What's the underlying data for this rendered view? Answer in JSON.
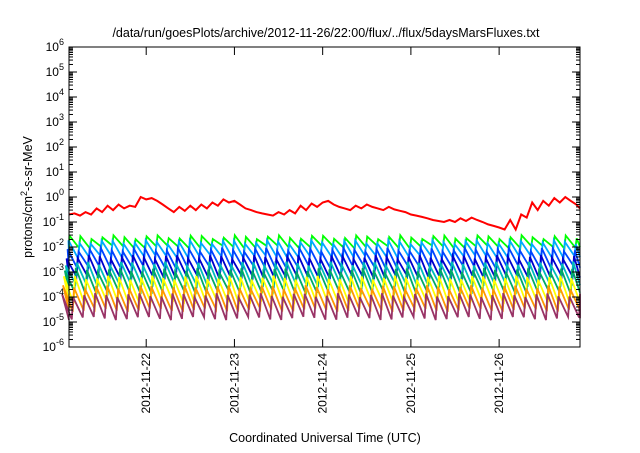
{
  "chart_data": {
    "type": "line",
    "title": "/data/run/goesPlots/archive/2012-11-26/22:00/flux/../flux/5daysMarsFluxes.txt",
    "xlabel": "Coordinated Universal Time (UTC)",
    "ylabel": {
      "prefix": "protons/cm",
      "sup": "2",
      "suffix": "-s-sr-MeV"
    },
    "yscale": "log",
    "ylim": [
      1e-06,
      1000000.0
    ],
    "xlim": [
      "2012-11-21T03:00",
      "2012-11-26T22:00"
    ],
    "grid": false,
    "legend": "none",
    "y_ticks": [
      {
        "value": 1000000.0,
        "base": "10",
        "exp": "6"
      },
      {
        "value": 100000.0,
        "base": "10",
        "exp": "5"
      },
      {
        "value": 10000.0,
        "base": "10",
        "exp": "4"
      },
      {
        "value": 1000.0,
        "base": "10",
        "exp": "3"
      },
      {
        "value": 100.0,
        "base": "10",
        "exp": "2"
      },
      {
        "value": 10.0,
        "base": "10",
        "exp": "1"
      },
      {
        "value": 1.0,
        "base": "10",
        "exp": "0"
      },
      {
        "value": 0.1,
        "base": "10",
        "exp": "-1"
      },
      {
        "value": 0.01,
        "base": "10",
        "exp": "-2"
      },
      {
        "value": 0.001,
        "base": "10",
        "exp": "-3"
      },
      {
        "value": 0.0001,
        "base": "10",
        "exp": "-4"
      },
      {
        "value": 1e-05,
        "base": "10",
        "exp": "-5"
      },
      {
        "value": 1e-06,
        "base": "10",
        "exp": "-6"
      }
    ],
    "x_ticks": [
      {
        "value": "2012-11-22T00:00",
        "label": "2012-11-22"
      },
      {
        "value": "2012-11-23T00:00",
        "label": "2012-11-23"
      },
      {
        "value": "2012-11-24T00:00",
        "label": "2012-11-24"
      },
      {
        "value": "2012-11-25T00:00",
        "label": "2012-11-25"
      },
      {
        "value": "2012-11-26T00:00",
        "label": "2012-11-26"
      }
    ],
    "series": [
      {
        "color": "#ff0000",
        "sawtooth": false,
        "x": [
          "2012-11-21T03:00",
          "2012-11-21T04:30",
          "2012-11-21T06:00",
          "2012-11-21T07:30",
          "2012-11-21T09:00",
          "2012-11-21T10:30",
          "2012-11-21T12:00",
          "2012-11-21T13:30",
          "2012-11-21T15:00",
          "2012-11-21T16:30",
          "2012-11-21T18:00",
          "2012-11-21T19:30",
          "2012-11-21T21:00",
          "2012-11-21T22:30",
          "2012-11-22T00:00",
          "2012-11-22T01:30",
          "2012-11-22T03:00",
          "2012-11-22T04:30",
          "2012-11-22T06:00",
          "2012-11-22T07:30",
          "2012-11-22T09:00",
          "2012-11-22T10:30",
          "2012-11-22T12:00",
          "2012-11-22T13:30",
          "2012-11-22T15:00",
          "2012-11-22T16:30",
          "2012-11-22T18:00",
          "2012-11-22T19:30",
          "2012-11-22T21:00",
          "2012-11-22T22:30",
          "2012-11-23T00:00",
          "2012-11-23T01:30",
          "2012-11-23T03:00",
          "2012-11-23T04:30",
          "2012-11-23T06:00",
          "2012-11-23T07:30",
          "2012-11-23T09:00",
          "2012-11-23T10:30",
          "2012-11-23T12:00",
          "2012-11-23T13:30",
          "2012-11-23T15:00",
          "2012-11-23T16:30",
          "2012-11-23T18:00",
          "2012-11-23T19:30",
          "2012-11-23T21:00",
          "2012-11-23T22:30",
          "2012-11-24T00:00",
          "2012-11-24T01:30",
          "2012-11-24T03:00",
          "2012-11-24T04:30",
          "2012-11-24T06:00",
          "2012-11-24T07:30",
          "2012-11-24T09:00",
          "2012-11-24T10:30",
          "2012-11-24T12:00",
          "2012-11-24T13:30",
          "2012-11-24T15:00",
          "2012-11-24T16:30",
          "2012-11-24T18:00",
          "2012-11-24T19:30",
          "2012-11-24T21:00",
          "2012-11-24T22:30",
          "2012-11-25T00:00",
          "2012-11-25T01:30",
          "2012-11-25T03:00",
          "2012-11-25T04:30",
          "2012-11-25T06:00",
          "2012-11-25T07:30",
          "2012-11-25T09:00",
          "2012-11-25T10:30",
          "2012-11-25T12:00",
          "2012-11-25T13:30",
          "2012-11-25T15:00",
          "2012-11-25T16:30",
          "2012-11-25T18:00",
          "2012-11-25T19:30",
          "2012-11-25T21:00",
          "2012-11-25T22:30",
          "2012-11-26T00:00",
          "2012-11-26T01:30",
          "2012-11-26T03:00",
          "2012-11-26T04:30",
          "2012-11-26T06:00",
          "2012-11-26T07:30",
          "2012-11-26T09:00",
          "2012-11-26T10:30",
          "2012-11-26T12:00",
          "2012-11-26T13:30",
          "2012-11-26T15:00",
          "2012-11-26T16:30",
          "2012-11-26T18:00",
          "2012-11-26T19:30",
          "2012-11-26T21:00",
          "2012-11-26T22:00"
        ],
        "y": [
          0.2,
          0.22,
          0.18,
          0.25,
          0.2,
          0.35,
          0.25,
          0.45,
          0.3,
          0.5,
          0.35,
          0.45,
          0.4,
          1.0,
          0.8,
          0.9,
          0.7,
          0.5,
          0.35,
          0.25,
          0.4,
          0.28,
          0.45,
          0.3,
          0.5,
          0.35,
          0.6,
          0.45,
          0.8,
          0.6,
          0.7,
          0.5,
          0.35,
          0.3,
          0.25,
          0.22,
          0.2,
          0.18,
          0.25,
          0.2,
          0.3,
          0.22,
          0.45,
          0.3,
          0.55,
          0.4,
          0.6,
          0.7,
          0.5,
          0.4,
          0.35,
          0.3,
          0.45,
          0.35,
          0.5,
          0.4,
          0.35,
          0.3,
          0.4,
          0.32,
          0.28,
          0.25,
          0.2,
          0.18,
          0.16,
          0.14,
          0.12,
          0.11,
          0.1,
          0.12,
          0.1,
          0.14,
          0.11,
          0.15,
          0.12,
          0.1,
          0.08,
          0.07,
          0.06,
          0.05,
          0.12,
          0.05,
          0.2,
          0.15,
          0.6,
          0.3,
          0.7,
          0.45,
          0.9,
          0.6,
          1.0,
          0.7,
          0.5,
          0.35
        ]
      },
      {
        "color": "#00ff00",
        "sawtooth": true,
        "peak": 0.025,
        "trough": 0.01
      },
      {
        "color": "#00aaff",
        "sawtooth": true,
        "peak": 0.016,
        "trough": 0.004
      },
      {
        "color": "#0044ff",
        "sawtooth": true,
        "peak": 0.008,
        "trough": 0.0015
      },
      {
        "color": "#0000cc",
        "sawtooth": true,
        "peak": 0.004,
        "trough": 0.0006
      },
      {
        "color": "#00bbbb",
        "sawtooth": true,
        "peak": 0.0022,
        "trough": 0.0003
      },
      {
        "color": "#00aa66",
        "sawtooth": true,
        "peak": 0.0012,
        "trough": 0.00015
      },
      {
        "color": "#ffff00",
        "sawtooth": true,
        "peak": 0.0006,
        "trough": 6e-05
      },
      {
        "color": "#ff9900",
        "sawtooth": true,
        "peak": 0.00025,
        "trough": 3e-05
      },
      {
        "color": "#993366",
        "sawtooth": true,
        "peak": 0.00012,
        "trough": 1.4e-05
      }
    ]
  }
}
